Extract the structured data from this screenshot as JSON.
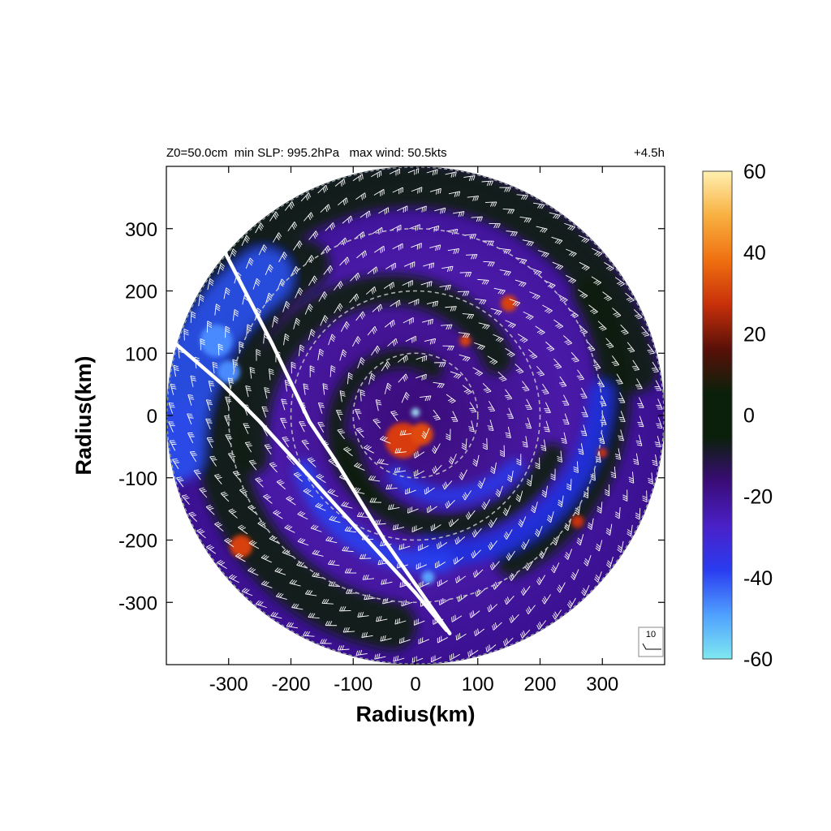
{
  "header": {
    "left_text": "Z0=50.0cm  min SLP: 995.2hPa   max wind: 50.5kts",
    "right_text": "+4.5h"
  },
  "chart_data": {
    "type": "heatmap",
    "title": "",
    "xlabel": "Radius(km)",
    "ylabel": "Radius(km)",
    "xlim": [
      -400,
      400
    ],
    "ylim": [
      -400,
      400
    ],
    "xticks": [
      -300,
      -200,
      -100,
      0,
      100,
      200,
      300
    ],
    "yticks": [
      300,
      200,
      100,
      0,
      -100,
      -200,
      -300
    ],
    "xtick_labels": [
      "-300",
      "-200",
      "-100",
      "0",
      "100",
      "200",
      "300"
    ],
    "ytick_labels": [
      "300",
      "200",
      "100",
      "0",
      "-100",
      "-200",
      "-300"
    ],
    "domain_radius_km": 400,
    "range_rings_km": [
      100,
      200,
      300
    ],
    "colorbar": {
      "min": -60,
      "max": 60,
      "ticks": [
        60,
        40,
        20,
        0,
        -20,
        -40,
        -60
      ],
      "tick_labels": [
        "60",
        "40",
        "20",
        "0",
        "-20",
        "-40",
        "-60"
      ],
      "colors": [
        "#7fe8f0",
        "#4fa0ff",
        "#2a3cf0",
        "#4a20c8",
        "#3a0c78",
        "#0a200a",
        "#0a200a",
        "#5a1008",
        "#c8300a",
        "#f07010",
        "#f8b040",
        "#fff0b0"
      ]
    },
    "wind_barb_reference": {
      "label": "10",
      "units": "kts"
    },
    "track_lines": [
      {
        "points": [
          [
            -305,
            260
          ],
          [
            -230,
            115
          ],
          [
            -170,
            -10
          ],
          [
            -130,
            -70
          ],
          [
            -50,
            -200
          ],
          [
            55,
            -350
          ]
        ]
      },
      {
        "points": [
          [
            -385,
            115
          ],
          [
            -310,
            50
          ],
          [
            -250,
            -10
          ],
          [
            -150,
            -120
          ],
          [
            0,
            -285
          ],
          [
            50,
            -345
          ]
        ]
      }
    ]
  }
}
